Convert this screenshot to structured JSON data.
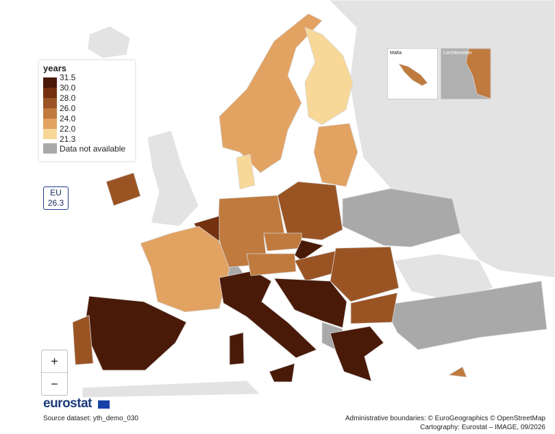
{
  "legend": {
    "title": "years",
    "breaks": [
      "31.5",
      "30.0",
      "28.0",
      "26.0",
      "24.0",
      "22.0",
      "21.3"
    ],
    "colors": [
      "#4a1a08",
      "#74310f",
      "#9a5424",
      "#c07a3e",
      "#e2a262",
      "#f7d898"
    ],
    "na_label": "Data not available",
    "na_color": "#a9a9a9"
  },
  "eu_box": {
    "label": "EU",
    "value": "26.3"
  },
  "insets": {
    "malta": "Malta",
    "liechtenstein": "Liechtenstein"
  },
  "zoom": {
    "in": "+",
    "out": "−"
  },
  "logo": "eurostat",
  "source": "Source dataset: yth_demo_030",
  "credits": [
    "Administrative boundaries: © EuroGeographics © OpenStreetMap",
    "Cartography: Eurostat – IMAGE, 09/2026"
  ]
}
